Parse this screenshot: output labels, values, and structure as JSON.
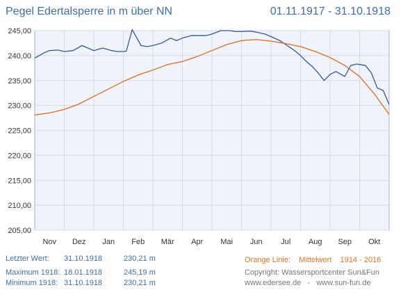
{
  "title_left": "Pegel Edertalsperre in m über NN",
  "title_right": "01.11.1917 - 31.10.1918",
  "chart_data": {
    "type": "line",
    "ylim": [
      205,
      245
    ],
    "yticks": [
      "205,00",
      "210,00",
      "215,00",
      "220,00",
      "225,00",
      "230,00",
      "235,00",
      "240,00",
      "245,00"
    ],
    "ytick_values": [
      205,
      210,
      215,
      220,
      225,
      230,
      235,
      240,
      245
    ],
    "months": [
      "Nov",
      "Dez",
      "Jan",
      "Feb",
      "Mär",
      "Apr",
      "Mai",
      "Jun",
      "Jul",
      "Aug",
      "Sep",
      "Okt"
    ],
    "grid": true,
    "series": [
      {
        "color": "#2c5aa0",
        "x": [
          0,
          0.3,
          0.5,
          0.8,
          1.0,
          1.3,
          1.6,
          1.8,
          2.0,
          2.3,
          2.6,
          2.8,
          2.9,
          3.0,
          3.1,
          3.3,
          3.6,
          3.8,
          4.0,
          4.3,
          4.6,
          4.8,
          5.0,
          5.3,
          5.6,
          5.8,
          6.0,
          6.3,
          6.6,
          6.8,
          7.0,
          7.3,
          7.5,
          7.8,
          8.0,
          8.3,
          8.6,
          8.8,
          9.0,
          9.2,
          9.4,
          9.6,
          9.8,
          10.0,
          10.2,
          10.5,
          10.7,
          10.9,
          11.0,
          11.2,
          11.4,
          11.6,
          11.8,
          12.0
        ],
        "values": [
          239.5,
          240.5,
          241.0,
          241.1,
          240.8,
          241.0,
          242.0,
          241.5,
          241.0,
          241.5,
          241.0,
          240.8,
          240.8,
          240.8,
          240.9,
          245.2,
          242.0,
          241.8,
          242.0,
          242.5,
          243.5,
          243.0,
          243.5,
          244.0,
          244.0,
          244.0,
          244.3,
          245.0,
          245.0,
          244.8,
          244.8,
          244.9,
          244.7,
          244.3,
          243.8,
          243.0,
          241.8,
          241.0,
          240.0,
          238.8,
          237.8,
          236.5,
          235.0,
          236.2,
          236.8,
          235.8,
          238.0,
          238.3,
          238.2,
          238.0,
          236.5,
          233.5,
          233.0,
          230.2
        ]
      },
      {
        "color": "#e06a1a",
        "x": [
          0,
          0.5,
          1.0,
          1.5,
          2.0,
          2.5,
          3.0,
          3.5,
          4.0,
          4.5,
          5.0,
          5.5,
          6.0,
          6.5,
          7.0,
          7.5,
          8.0,
          8.5,
          9.0,
          9.5,
          10.0,
          10.5,
          11.0,
          11.5,
          12.0
        ],
        "values": [
          228.1,
          228.5,
          229.2,
          230.3,
          231.8,
          233.3,
          234.8,
          236.1,
          237.1,
          238.2,
          238.8,
          239.8,
          241.0,
          242.2,
          243.0,
          243.2,
          242.9,
          242.4,
          241.8,
          240.8,
          239.6,
          238.0,
          235.8,
          232.3,
          228.2
        ]
      }
    ]
  },
  "footer": {
    "last_label": "Letzter Wert:",
    "last_date": "31.10.1918",
    "last_value": "230,21 m",
    "max_label": "Maximum 1918:",
    "max_date": "18.01.1918",
    "max_value": "245,19 m",
    "min_label": "Minimum  1918:",
    "min_date": "31.10.1918",
    "min_value": "230,21 m",
    "legend_prefix": "Orange Linie:",
    "legend_text": "Mittelwert",
    "legend_years": "1914 - 2016",
    "copyright": "Copyright: Wassersportcenter Sun&Fun",
    "links": "www.edersee.de   -   www.sun-fun.de"
  }
}
